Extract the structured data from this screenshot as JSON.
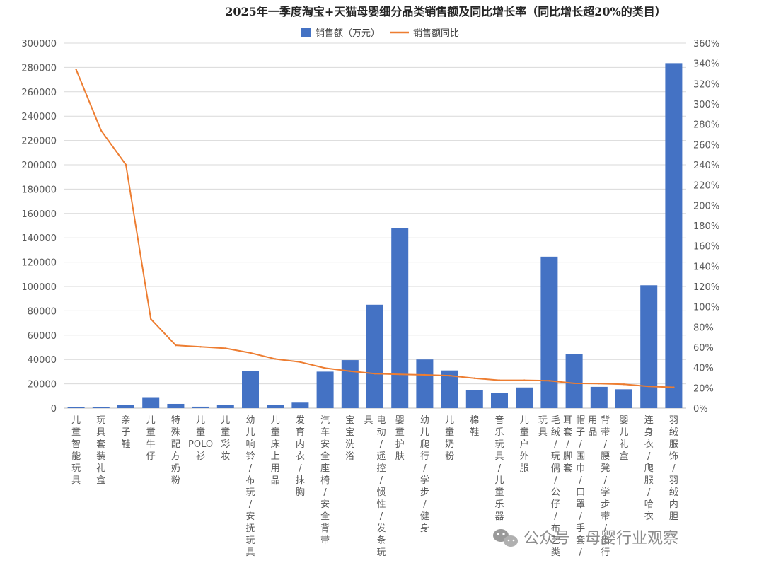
{
  "chart_data": {
    "type": "bar",
    "title": "2025年一季度淘宝+天猫母婴细分品类销售额及同比增长率（同比增长超20%的类目）",
    "categories": [
      "儿童智能玩具",
      "玩具套装礼盒",
      "亲子鞋",
      "儿童牛仔",
      "特殊配方奶粉",
      "儿童POLO衫",
      "儿童彩妆",
      "幼儿响铃/布玩/安抚玩具",
      "儿童床上用品",
      "发育内衣/抹胸",
      "汽车安全座椅/安全背带",
      "宝宝洗浴",
      "电动/遥控/惯性/发条玩具",
      "婴童护肤",
      "幼儿爬行/学步/健身",
      "儿童奶粉",
      "棉鞋",
      "音乐玩具/儿童乐器",
      "儿童户外服",
      "毛绒/玩偶/公仔/布艺类玩具",
      "帽子/围巾/口罩/手套/耳套/脚套",
      "背带/腰凳/学步带/出行用品",
      "婴儿礼盒",
      "连身衣/爬服/哈衣",
      "羽绒服饰/羽绒内胆"
    ],
    "series": [
      {
        "name": "销售额（万元）",
        "type": "bar",
        "axis": "left",
        "color": "#4472C4",
        "values": [
          600,
          700,
          2500,
          9000,
          3500,
          1200,
          2500,
          30500,
          2500,
          4500,
          30000,
          39500,
          85000,
          148000,
          40000,
          31000,
          15000,
          12500,
          17000,
          124500,
          44500,
          17500,
          15500,
          101000,
          283500
        ]
      },
      {
        "name": "销售额同比",
        "type": "line",
        "axis": "right",
        "color": "#ED7D31",
        "values": [
          3.34,
          2.74,
          2.4,
          0.88,
          0.62,
          0.605,
          0.59,
          0.545,
          0.485,
          0.455,
          0.395,
          0.365,
          0.34,
          0.333,
          0.328,
          0.32,
          0.295,
          0.275,
          0.275,
          0.27,
          0.245,
          0.243,
          0.235,
          0.215,
          0.205
        ]
      }
    ],
    "y_left": {
      "min": 0,
      "max": 300000,
      "step": 20000
    },
    "y_right": {
      "min": 0,
      "max": 3.6,
      "step": 0.2,
      "format": "percent"
    },
    "legend": {
      "position": "top",
      "labels": [
        "销售额（万元）",
        "销售额同比"
      ]
    },
    "grid": true
  },
  "watermark": {
    "label": "公众号 · 母婴行业观察"
  },
  "colors": {
    "bar": "#4472C4",
    "line": "#ED7D31",
    "grid": "#D9D9D9",
    "axis": "#BFBFBF"
  }
}
